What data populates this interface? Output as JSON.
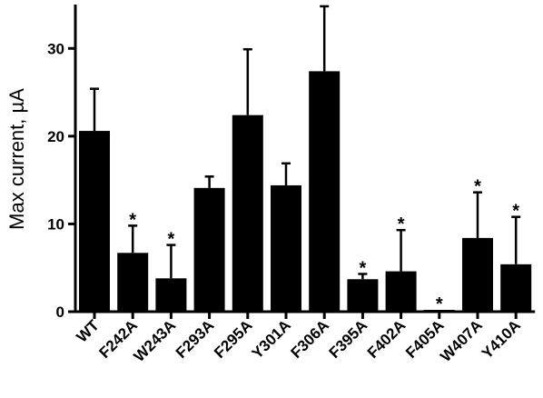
{
  "chart_data": {
    "type": "bar",
    "title": "",
    "xlabel": "",
    "ylabel": "Max current, µA",
    "ylim": [
      0,
      35
    ],
    "yticks": [
      0,
      10,
      20,
      30
    ],
    "grid": false,
    "legend": "none",
    "categories": [
      "WT",
      "F242A",
      "W243A",
      "F293A",
      "F295A",
      "Y301A",
      "F306A",
      "F395A",
      "F402A",
      "F405A",
      "W407A",
      "Y410A"
    ],
    "values": [
      20.6,
      6.7,
      3.8,
      14.1,
      22.4,
      14.4,
      27.4,
      3.7,
      4.6,
      0.2,
      8.4,
      5.4
    ],
    "error_upper": [
      25.4,
      9.8,
      7.6,
      15.4,
      29.9,
      16.9,
      34.8,
      4.3,
      9.3,
      0.2,
      13.6,
      10.8
    ],
    "significance": [
      "",
      "*",
      "*",
      "",
      "",
      "",
      "",
      "*",
      "*",
      "*",
      "*",
      "*"
    ],
    "bar_color": "#000000"
  }
}
